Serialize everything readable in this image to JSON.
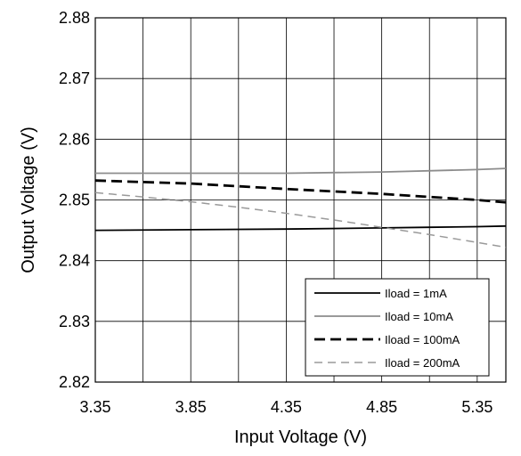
{
  "chart_data": {
    "type": "line",
    "title": "",
    "xlabel": "Input Voltage (V)",
    "ylabel": "Output Voltage (V)",
    "xlim": [
      3.35,
      5.5
    ],
    "ylim": [
      2.82,
      2.88
    ],
    "xticks": [
      3.35,
      3.85,
      4.35,
      4.85,
      5.35
    ],
    "xtick_labels": [
      "3.35",
      "3.85",
      "4.35",
      "4.85",
      "5.35"
    ],
    "yticks": [
      2.82,
      2.83,
      2.84,
      2.85,
      2.86,
      2.87,
      2.88
    ],
    "ytick_labels": [
      "2.82",
      "2.83",
      "2.84",
      "2.85",
      "2.86",
      "2.87",
      "2.88"
    ],
    "x_minor_grid": [
      3.6,
      4.1,
      4.6,
      5.1
    ],
    "grid": true,
    "legend_position": "bottom-right",
    "series": [
      {
        "name": "Iload = 1mA",
        "color": "#000000",
        "style": "solid",
        "x": [
          3.35,
          3.85,
          4.35,
          4.85,
          5.1,
          5.35,
          5.5
        ],
        "y": [
          2.845,
          2.8451,
          2.8452,
          2.8454,
          2.8455,
          2.8456,
          2.8457
        ]
      },
      {
        "name": "Iload = 10mA",
        "color": "#8c8c8c",
        "style": "solid",
        "x": [
          3.35,
          3.85,
          4.35,
          4.85,
          5.35,
          5.5
        ],
        "y": [
          2.8544,
          2.8544,
          2.8544,
          2.8546,
          2.855,
          2.8552
        ]
      },
      {
        "name": "Iload = 100mA",
        "color": "#000000",
        "style": "dashed-bold",
        "x": [
          3.35,
          3.85,
          4.35,
          4.85,
          5.35,
          5.5
        ],
        "y": [
          2.8532,
          2.8527,
          2.8518,
          2.851,
          2.85,
          2.8496
        ]
      },
      {
        "name": "Iload = 200mA",
        "color": "#9a9a9a",
        "style": "dashed",
        "x": [
          3.35,
          3.6,
          3.85,
          4.1,
          4.35,
          4.6,
          4.85,
          5.1,
          5.35,
          5.5
        ],
        "y": [
          2.8512,
          2.8505,
          2.8497,
          2.8488,
          2.8478,
          2.8467,
          2.8455,
          2.8443,
          2.843,
          2.8422
        ]
      }
    ]
  }
}
